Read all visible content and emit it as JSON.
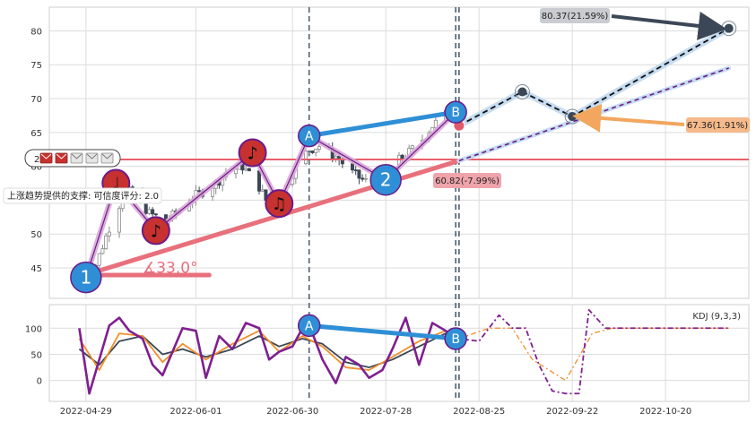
{
  "chart_data": [
    {
      "type": "candlestick",
      "panel": "price",
      "y_ticks": [
        45,
        50,
        55,
        60,
        65,
        70,
        75,
        80
      ],
      "ylim": [
        40.5,
        83.5
      ],
      "x_ticks": [
        "2022-04-29",
        "2022-06-01",
        "2022-06-30",
        "2022-07-28",
        "2022-08-25",
        "2022-09-22",
        "2022-10-20"
      ],
      "xlim": [
        "2022-04-18",
        "2022-11-14"
      ],
      "grid": true,
      "vlines_dates": [
        "2022-07-05",
        "2022-08-18",
        "2022-08-19"
      ],
      "close_series": {
        "dates": [
          "2022-04-27",
          "2022-05-02",
          "2022-05-06",
          "2022-05-10",
          "2022-05-13",
          "2022-05-18",
          "2022-05-23",
          "2022-05-26",
          "2022-05-30",
          "2022-06-02",
          "2022-06-07",
          "2022-06-10",
          "2022-06-15",
          "2022-06-20",
          "2022-06-23",
          "2022-06-28",
          "2022-07-01",
          "2022-07-05",
          "2022-07-08",
          "2022-07-13",
          "2022-07-18",
          "2022-07-21",
          "2022-07-26",
          "2022-07-29",
          "2022-08-03",
          "2022-08-08",
          "2022-08-11",
          "2022-08-16",
          "2022-08-18"
        ],
        "values": [
          43.8,
          45.5,
          51.0,
          55.5,
          56.5,
          53.0,
          52.0,
          53.0,
          55.0,
          56.0,
          57.5,
          59.0,
          60.0,
          57.0,
          54.0,
          57.0,
          60.0,
          62.5,
          63.0,
          61.5,
          59.0,
          58.0,
          57.0,
          60.0,
          61.5,
          64.0,
          66.0,
          68.0,
          67.5
        ]
      },
      "horizontal_line": {
        "value": 61.0,
        "color": "#e8606a"
      },
      "pattern_points": [
        {
          "label": "1",
          "date": "2022-04-29",
          "value": 43.6
        },
        {
          "label": "A",
          "date": "2022-07-05",
          "value": 64.5
        },
        {
          "label": "2",
          "date": "2022-07-28",
          "value": 58.0
        },
        {
          "label": "B",
          "date": "2022-08-18",
          "value": 68.0
        }
      ],
      "note_markers": [
        {
          "symbol": "♩",
          "date": "2022-05-08",
          "value": 57.5
        },
        {
          "symbol": "♪",
          "date": "2022-05-20",
          "value": 50.5
        },
        {
          "symbol": "♪",
          "date": "2022-06-18",
          "value": 62.0
        },
        {
          "symbol": "♫",
          "date": "2022-06-26",
          "value": 54.5
        }
      ],
      "support_line": {
        "from": {
          "date": "2022-04-29",
          "value": 44.0
        },
        "to": {
          "date": "2022-11-08",
          "value": 74.5
        }
      },
      "trend_AB": {
        "from": {
          "date": "2022-07-05",
          "value": 64.5
        },
        "to": {
          "date": "2022-08-18",
          "value": 68.0
        }
      },
      "projection_path": [
        {
          "date": "2022-08-19",
          "value": 66.0
        },
        {
          "date": "2022-09-07",
          "value": 71.0
        },
        {
          "date": "2022-09-22",
          "value": 67.36
        },
        {
          "date": "2022-11-08",
          "value": 80.37
        }
      ],
      "lower_projection_start": {
        "date": "2022-08-19",
        "value": 60.82
      },
      "angle_label": "∡33.0°",
      "support_label": "上涨趋势提供的支撑: 可信度评分: 2.0",
      "badge_count": "2",
      "target_labels": [
        {
          "text": "80.37(21.59%)",
          "date": "2022-11-08",
          "value": 80.37
        },
        {
          "text": "67.36(1.91%)",
          "date": "2022-09-22",
          "value": 67.36
        },
        {
          "text": "60.82(-7.99%)",
          "date": "2022-08-19",
          "value": 60.82
        }
      ],
      "colors": {
        "up": "#8a8a8a",
        "down": "#3b4756",
        "accent_blue": "#2f8fd6",
        "accent_red": "#e8606a",
        "note_red": "#c7312f",
        "orange": "#f2a65e",
        "purple": "#6a1b8a"
      }
    },
    {
      "type": "line",
      "panel": "indicator",
      "legend": "KDJ (9,3,3)",
      "y_ticks": [
        0,
        50,
        100
      ],
      "ylim": [
        -40,
        145
      ],
      "series": [
        {
          "dates": [
            "2022-04-27",
            "2022-04-30",
            "2022-05-03",
            "2022-05-06",
            "2022-05-09",
            "2022-05-12",
            "2022-05-16",
            "2022-05-19",
            "2022-05-22",
            "2022-05-25",
            "2022-05-28",
            "2022-06-01",
            "2022-06-04",
            "2022-06-08",
            "2022-06-12",
            "2022-06-16",
            "2022-06-20",
            "2022-06-23",
            "2022-06-26",
            "2022-06-30",
            "2022-07-03",
            "2022-07-06",
            "2022-07-09",
            "2022-07-13",
            "2022-07-16",
            "2022-07-20",
            "2022-07-23",
            "2022-07-27",
            "2022-07-30",
            "2022-08-03",
            "2022-08-07",
            "2022-08-11",
            "2022-08-15",
            "2022-08-18"
          ],
          "values": [
            100,
            -25,
            40,
            105,
            120,
            95,
            80,
            30,
            10,
            55,
            100,
            95,
            5,
            85,
            60,
            110,
            100,
            40,
            55,
            65,
            100,
            90,
            40,
            -5,
            45,
            30,
            5,
            20,
            60,
            120,
            30,
            110,
            95,
            80
          ],
          "color": "#7f1f8f"
        },
        {
          "dates": [
            "2022-04-27",
            "2022-05-03",
            "2022-05-09",
            "2022-05-16",
            "2022-05-22",
            "2022-05-28",
            "2022-06-04",
            "2022-06-12",
            "2022-06-20",
            "2022-06-26",
            "2022-07-03",
            "2022-07-09",
            "2022-07-16",
            "2022-07-23",
            "2022-07-30",
            "2022-08-07",
            "2022-08-15",
            "2022-08-18"
          ],
          "values": [
            80,
            20,
            90,
            85,
            35,
            70,
            40,
            70,
            95,
            55,
            85,
            65,
            25,
            20,
            45,
            75,
            95,
            85
          ],
          "color": "#f28e2b"
        },
        {
          "dates": [
            "2022-04-27",
            "2022-05-03",
            "2022-05-09",
            "2022-05-16",
            "2022-05-22",
            "2022-05-28",
            "2022-06-04",
            "2022-06-12",
            "2022-06-20",
            "2022-06-26",
            "2022-07-03",
            "2022-07-09",
            "2022-07-16",
            "2022-07-23",
            "2022-07-30",
            "2022-08-07",
            "2022-08-15",
            "2022-08-18"
          ],
          "values": [
            60,
            30,
            75,
            85,
            50,
            60,
            45,
            60,
            85,
            65,
            80,
            70,
            35,
            25,
            40,
            65,
            90,
            85
          ],
          "color": "#3b4756"
        }
      ],
      "projection": [
        {
          "dates": [
            "2022-08-19",
            "2022-08-25",
            "2022-08-31",
            "2022-09-04",
            "2022-09-08",
            "2022-09-12",
            "2022-09-16",
            "2022-09-20",
            "2022-09-24",
            "2022-09-27",
            "2022-10-02",
            "2022-10-20",
            "2022-11-08"
          ],
          "values": [
            80,
            75,
            125,
            100,
            100,
            30,
            -20,
            -25,
            -25,
            135,
            100,
            100,
            100
          ],
          "color": "#7f1f8f"
        },
        {
          "dates": [
            "2022-08-19",
            "2022-08-28",
            "2022-09-04",
            "2022-09-10",
            "2022-09-20",
            "2022-09-28",
            "2022-10-04",
            "2022-11-08"
          ],
          "values": [
            80,
            100,
            100,
            40,
            0,
            90,
            100,
            100
          ],
          "color": "#f28e2b"
        }
      ],
      "pattern_points": [
        {
          "label": "A",
          "date": "2022-07-05",
          "value": 105
        },
        {
          "label": "B",
          "date": "2022-08-18",
          "value": 80
        }
      ]
    }
  ]
}
